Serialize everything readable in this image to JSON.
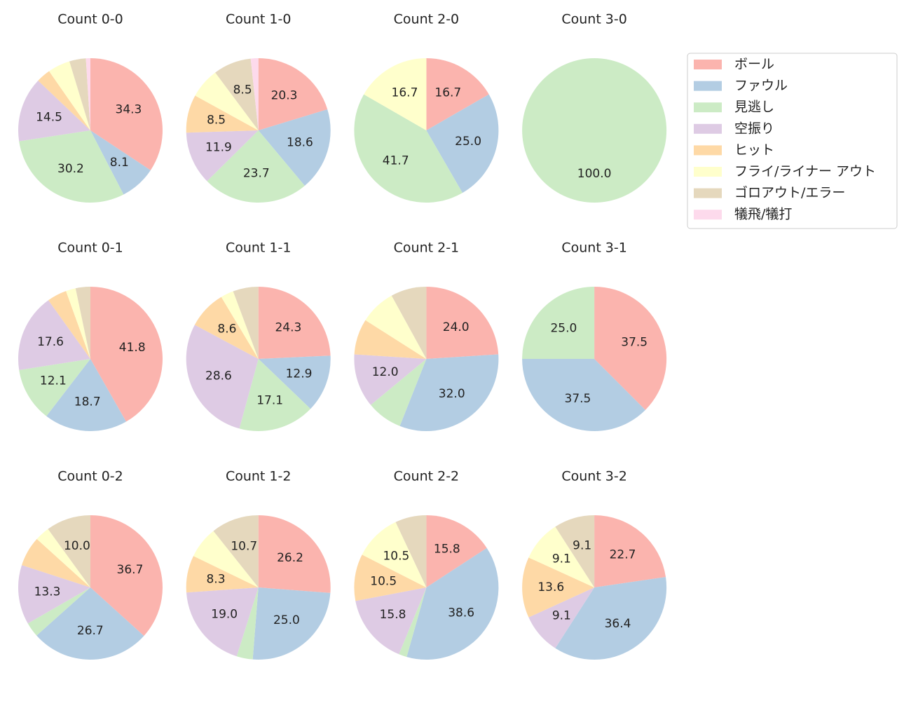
{
  "chart_data": [
    {
      "type": "pie",
      "title": "Count 0-0",
      "categories": [
        "ボール",
        "ファウル",
        "見逃し",
        "空振り",
        "ヒット",
        "フライ/ライナー アウト",
        "ゴロアウト/エラー",
        "犠飛/犠打"
      ],
      "colors": [
        "#fbb4ae",
        "#b3cde3",
        "#ccebc5",
        "#decbe4",
        "#fed9a6",
        "#ffffcc",
        "#e5d8bd",
        "#fddaec"
      ],
      "values": [
        34.3,
        8.1,
        30.2,
        14.5,
        3.2,
        5.0,
        3.7,
        1.0
      ],
      "value_labels": [
        "34.3",
        "8.1",
        "30.2",
        "14.5",
        null,
        null,
        null,
        null
      ]
    },
    {
      "type": "pie",
      "title": "Count 1-0",
      "categories": [
        "ボール",
        "ファウル",
        "見逃し",
        "空振り",
        "ヒット",
        "フライ/ライナー アウト",
        "ゴロアウト/エラー",
        "犠飛/犠打"
      ],
      "colors": [
        "#fbb4ae",
        "#b3cde3",
        "#ccebc5",
        "#decbe4",
        "#fed9a6",
        "#ffffcc",
        "#e5d8bd",
        "#fddaec"
      ],
      "values": [
        20.3,
        18.6,
        23.7,
        11.9,
        8.5,
        6.8,
        8.5,
        1.7
      ],
      "value_labels": [
        "20.3",
        "18.6",
        "23.7",
        "11.9",
        "8.5",
        null,
        "8.5",
        null
      ]
    },
    {
      "type": "pie",
      "title": "Count 2-0",
      "categories": [
        "ボール",
        "ファウル",
        "見逃し",
        "空振り",
        "ヒット",
        "フライ/ライナー アウト",
        "ゴロアウト/エラー",
        "犠飛/犠打"
      ],
      "colors": [
        "#fbb4ae",
        "#b3cde3",
        "#ccebc5",
        "#decbe4",
        "#fed9a6",
        "#ffffcc",
        "#e5d8bd",
        "#fddaec"
      ],
      "values": [
        16.7,
        25.0,
        41.7,
        0,
        0,
        16.7,
        0,
        0
      ],
      "value_labels": [
        "16.7",
        "25.0",
        "41.7",
        null,
        null,
        "16.7",
        null,
        null
      ]
    },
    {
      "type": "pie",
      "title": "Count 3-0",
      "categories": [
        "ボール",
        "ファウル",
        "見逃し",
        "空振り",
        "ヒット",
        "フライ/ライナー アウト",
        "ゴロアウト/エラー",
        "犠飛/犠打"
      ],
      "colors": [
        "#fbb4ae",
        "#b3cde3",
        "#ccebc5",
        "#decbe4",
        "#fed9a6",
        "#ffffcc",
        "#e5d8bd",
        "#fddaec"
      ],
      "values": [
        0,
        0,
        100,
        0,
        0,
        0,
        0,
        0
      ],
      "value_labels": [
        null,
        null,
        "100.0",
        null,
        null,
        null,
        null,
        null
      ]
    },
    {
      "type": "pie",
      "title": "Count 0-1",
      "categories": [
        "ボール",
        "ファウル",
        "見逃し",
        "空振り",
        "ヒット",
        "フライ/ライナー アウト",
        "ゴロアウト/エラー",
        "犠飛/犠打"
      ],
      "colors": [
        "#fbb4ae",
        "#b3cde3",
        "#ccebc5",
        "#decbe4",
        "#fed9a6",
        "#ffffcc",
        "#e5d8bd",
        "#fddaec"
      ],
      "values": [
        41.8,
        18.7,
        12.1,
        17.6,
        4.4,
        2.2,
        3.3,
        0
      ],
      "value_labels": [
        "41.8",
        "18.7",
        "12.1",
        "17.6",
        null,
        null,
        null,
        null
      ]
    },
    {
      "type": "pie",
      "title": "Count 1-1",
      "categories": [
        "ボール",
        "ファウル",
        "見逃し",
        "空振り",
        "ヒット",
        "フライ/ライナー アウト",
        "ゴロアウト/エラー",
        "犠飛/犠打"
      ],
      "colors": [
        "#fbb4ae",
        "#b3cde3",
        "#ccebc5",
        "#decbe4",
        "#fed9a6",
        "#ffffcc",
        "#e5d8bd",
        "#fddaec"
      ],
      "values": [
        24.3,
        12.9,
        17.1,
        28.6,
        8.6,
        2.9,
        5.7,
        0
      ],
      "value_labels": [
        "24.3",
        "12.9",
        "17.1",
        "28.6",
        "8.6",
        null,
        null,
        null
      ]
    },
    {
      "type": "pie",
      "title": "Count 2-1",
      "categories": [
        "ボール",
        "ファウル",
        "見逃し",
        "空振り",
        "ヒット",
        "フライ/ライナー アウト",
        "ゴロアウト/エラー",
        "犠飛/犠打"
      ],
      "colors": [
        "#fbb4ae",
        "#b3cde3",
        "#ccebc5",
        "#decbe4",
        "#fed9a6",
        "#ffffcc",
        "#e5d8bd",
        "#fddaec"
      ],
      "values": [
        24.0,
        32.0,
        8.0,
        12.0,
        8.0,
        8.0,
        8.0,
        0
      ],
      "value_labels": [
        "24.0",
        "32.0",
        null,
        "12.0",
        null,
        null,
        null,
        null
      ]
    },
    {
      "type": "pie",
      "title": "Count 3-1",
      "categories": [
        "ボール",
        "ファウル",
        "見逃し",
        "空振り",
        "ヒット",
        "フライ/ライナー アウト",
        "ゴロアウト/エラー",
        "犠飛/犠打"
      ],
      "colors": [
        "#fbb4ae",
        "#b3cde3",
        "#ccebc5",
        "#decbe4",
        "#fed9a6",
        "#ffffcc",
        "#e5d8bd",
        "#fddaec"
      ],
      "values": [
        37.5,
        37.5,
        25.0,
        0,
        0,
        0,
        0,
        0
      ],
      "value_labels": [
        "37.5",
        "37.5",
        "25.0",
        null,
        null,
        null,
        null,
        null
      ]
    },
    {
      "type": "pie",
      "title": "Count 0-2",
      "categories": [
        "ボール",
        "ファウル",
        "見逃し",
        "空振り",
        "ヒット",
        "フライ/ライナー アウト",
        "ゴロアウト/エラー",
        "犠飛/犠打"
      ],
      "colors": [
        "#fbb4ae",
        "#b3cde3",
        "#ccebc5",
        "#decbe4",
        "#fed9a6",
        "#ffffcc",
        "#e5d8bd",
        "#fddaec"
      ],
      "values": [
        36.7,
        26.7,
        3.3,
        13.3,
        6.7,
        3.3,
        10.0,
        0
      ],
      "value_labels": [
        "36.7",
        "26.7",
        null,
        "13.3",
        null,
        null,
        "10.0",
        null
      ]
    },
    {
      "type": "pie",
      "title": "Count 1-2",
      "categories": [
        "ボール",
        "ファウル",
        "見逃し",
        "空振り",
        "ヒット",
        "フライ/ライナー アウト",
        "ゴロアウト/エラー",
        "犠飛/犠打"
      ],
      "colors": [
        "#fbb4ae",
        "#b3cde3",
        "#ccebc5",
        "#decbe4",
        "#fed9a6",
        "#ffffcc",
        "#e5d8bd",
        "#fddaec"
      ],
      "values": [
        26.2,
        25.0,
        3.6,
        19.0,
        8.3,
        7.1,
        10.7,
        0
      ],
      "value_labels": [
        "26.2",
        "25.0",
        null,
        "19.0",
        "8.3",
        null,
        "10.7",
        null
      ]
    },
    {
      "type": "pie",
      "title": "Count 2-2",
      "categories": [
        "ボール",
        "ファウル",
        "見逃し",
        "空振り",
        "ヒット",
        "フライ/ライナー アウト",
        "ゴロアウト/エラー",
        "犠飛/犠打"
      ],
      "colors": [
        "#fbb4ae",
        "#b3cde3",
        "#ccebc5",
        "#decbe4",
        "#fed9a6",
        "#ffffcc",
        "#e5d8bd",
        "#fddaec"
      ],
      "values": [
        15.8,
        38.6,
        1.8,
        15.8,
        10.5,
        10.5,
        7.0,
        0
      ],
      "value_labels": [
        "15.8",
        "38.6",
        null,
        "15.8",
        "10.5",
        "10.5",
        null,
        null
      ]
    },
    {
      "type": "pie",
      "title": "Count 3-2",
      "categories": [
        "ボール",
        "ファウル",
        "見逃し",
        "空振り",
        "ヒット",
        "フライ/ライナー アウト",
        "ゴロアウト/エラー",
        "犠飛/犠打"
      ],
      "colors": [
        "#fbb4ae",
        "#b3cde3",
        "#ccebc5",
        "#decbe4",
        "#fed9a6",
        "#ffffcc",
        "#e5d8bd",
        "#fddaec"
      ],
      "values": [
        22.7,
        36.4,
        0,
        9.1,
        13.6,
        9.1,
        9.1,
        0
      ],
      "value_labels": [
        "22.7",
        "36.4",
        null,
        "9.1",
        "13.6",
        "9.1",
        "9.1",
        null
      ]
    }
  ]
}
